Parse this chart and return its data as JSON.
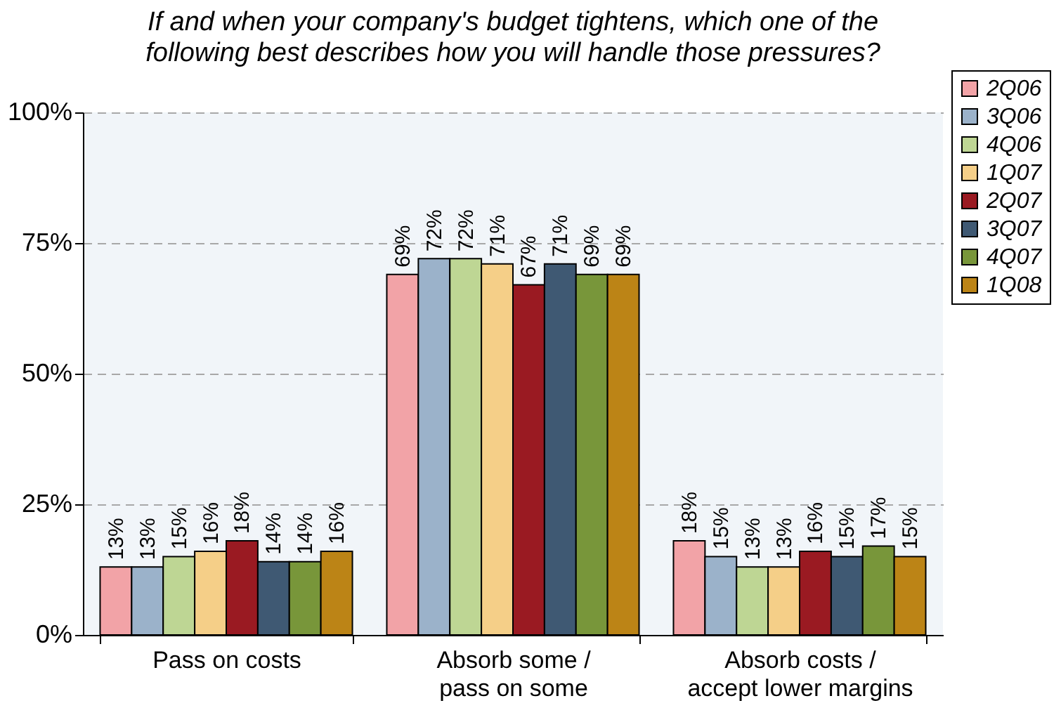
{
  "chart_data": {
    "type": "bar",
    "title": "If and when your company's budget tightens, which one of the\nfollowing best describes how you will handle those pressures?",
    "categories": [
      "Pass on costs",
      "Absorb some /\npass on some",
      "Absorb costs /\naccept lower margins"
    ],
    "ylim": [
      0,
      100
    ],
    "yticks": [
      {
        "value": 0,
        "label": "0%"
      },
      {
        "value": 25,
        "label": "25%"
      },
      {
        "value": 50,
        "label": "50%"
      },
      {
        "value": 75,
        "label": "75%"
      },
      {
        "value": 100,
        "label": "100%"
      }
    ],
    "grid": "y",
    "legend": "top right",
    "series": [
      {
        "name": "2Q06",
        "color": "#f2a3a7",
        "values": [
          13,
          69,
          18
        ],
        "value_labels": [
          "13%",
          "69%",
          "18%"
        ]
      },
      {
        "name": "3Q06",
        "color": "#9bb2ca",
        "values": [
          13,
          72,
          15
        ],
        "value_labels": [
          "13%",
          "72%",
          "15%"
        ]
      },
      {
        "name": "4Q06",
        "color": "#bed694",
        "values": [
          15,
          72,
          13
        ],
        "value_labels": [
          "15%",
          "72%",
          "13%"
        ]
      },
      {
        "name": "1Q07",
        "color": "#f5cf88",
        "values": [
          16,
          71,
          13
        ],
        "value_labels": [
          "16%",
          "71%",
          "13%"
        ]
      },
      {
        "name": "2Q07",
        "color": "#9a1a22",
        "values": [
          18,
          67,
          16
        ],
        "value_labels": [
          "18%",
          "67%",
          "16%"
        ]
      },
      {
        "name": "3Q07",
        "color": "#3f5973",
        "values": [
          14,
          71,
          15
        ],
        "value_labels": [
          "14%",
          "71%",
          "15%"
        ]
      },
      {
        "name": "4Q07",
        "color": "#78963a",
        "values": [
          14,
          69,
          17
        ],
        "value_labels": [
          "14%",
          "69%",
          "17%"
        ]
      },
      {
        "name": "1Q08",
        "color": "#bc8416",
        "values": [
          16,
          69,
          15
        ],
        "value_labels": [
          "16%",
          "69%",
          "15%"
        ]
      }
    ]
  }
}
